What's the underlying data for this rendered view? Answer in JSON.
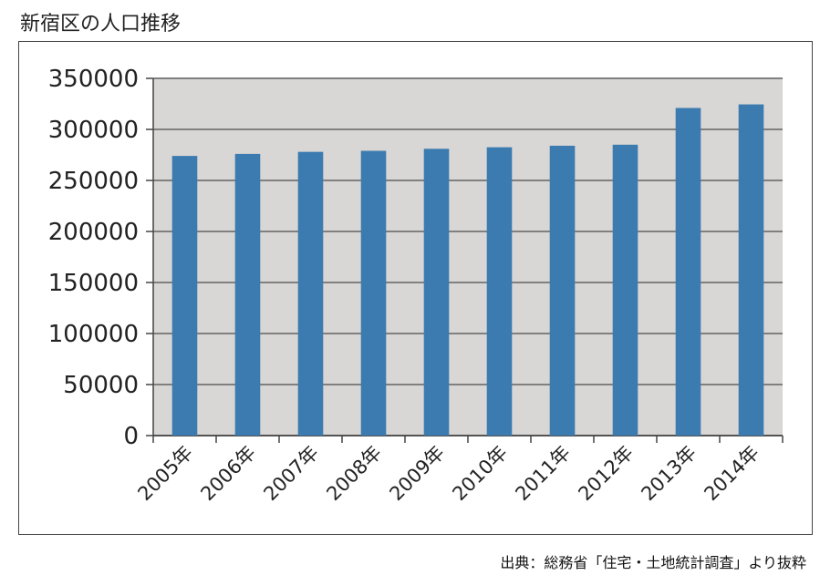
{
  "title": "新宿区の人口推移",
  "source": "出典：総務省「住宅・土地統計調査」より抜粋",
  "colors": {
    "bar": "#3b7bb0",
    "plot_bg": "#d9d7d5",
    "grid": "#808080",
    "axis": "#444444",
    "text": "#222222"
  },
  "chart_data": {
    "type": "bar",
    "title": "",
    "xlabel": "",
    "ylabel": "",
    "categories": [
      "2005年",
      "2006年",
      "2007年",
      "2008年",
      "2009年",
      "2010年",
      "2011年",
      "2012年",
      "2013年",
      "2014年"
    ],
    "values": [
      274000,
      276000,
      278000,
      279000,
      281000,
      282500,
      284000,
      285000,
      321000,
      324500
    ],
    "ylim": [
      0,
      350000
    ],
    "yticks": [
      "0",
      "50000",
      "100000",
      "150000",
      "200000",
      "250000",
      "300000",
      "350000"
    ],
    "grid": true,
    "legend": "none"
  }
}
